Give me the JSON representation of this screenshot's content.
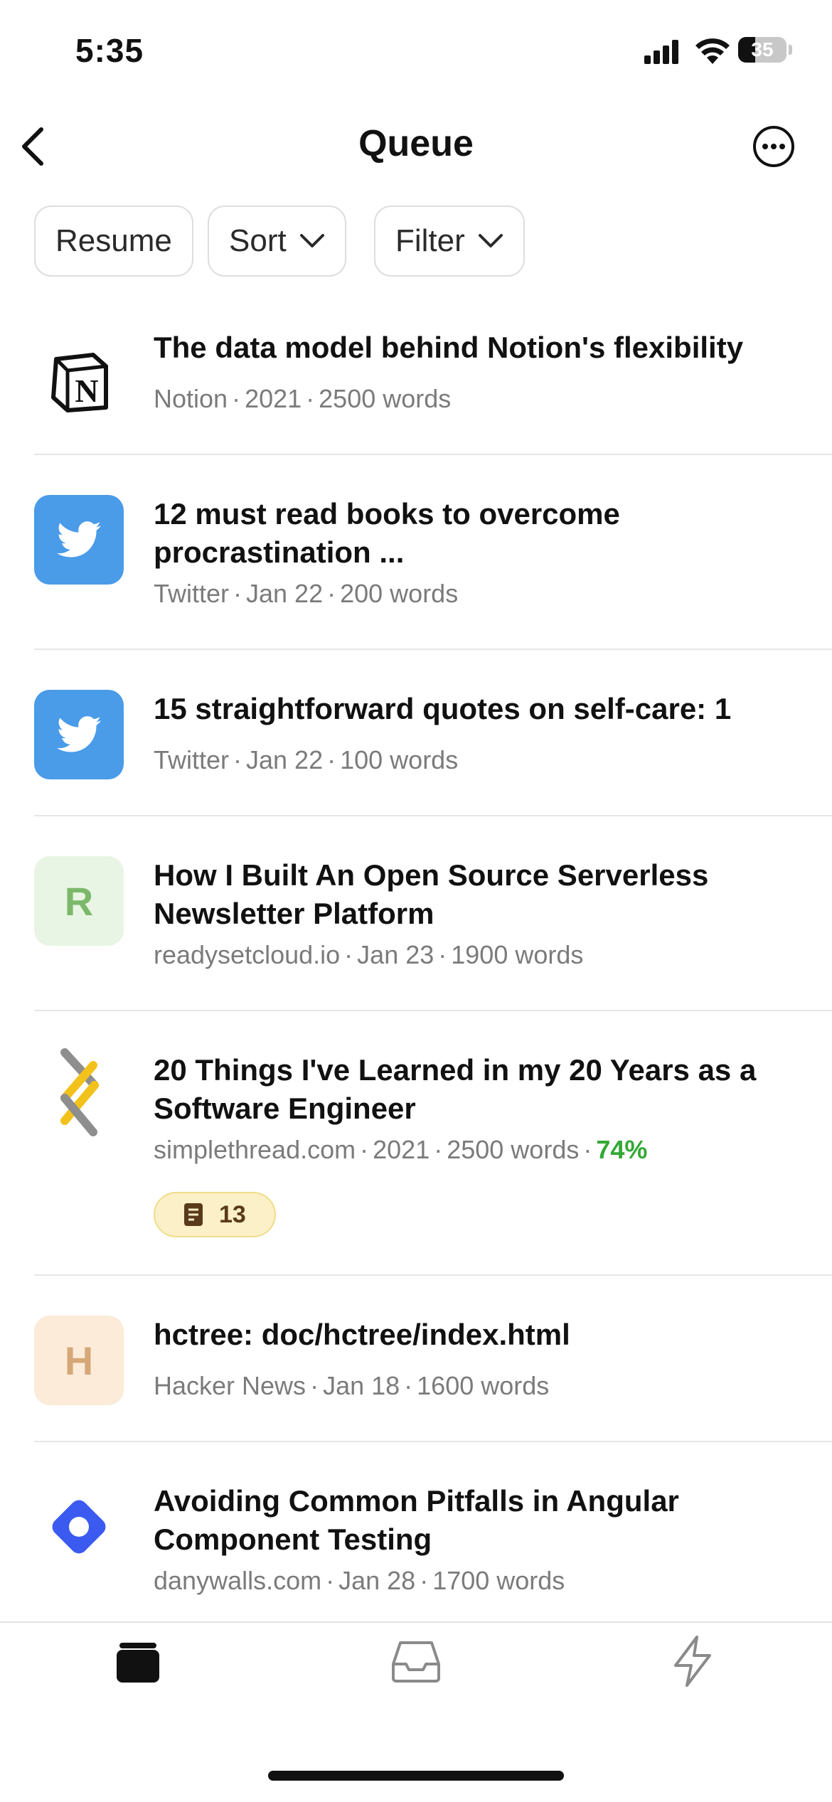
{
  "status": {
    "time": "5:35",
    "battery": "35"
  },
  "header": {
    "title": "Queue"
  },
  "chips": [
    {
      "label": "Resume"
    },
    {
      "label": "Sort"
    },
    {
      "label": "Filter"
    }
  ],
  "items": [
    {
      "title": "The data model behind Notion's flexibility",
      "source": "Notion",
      "date": "2021",
      "words": "2500 words",
      "icon": "notion-logo"
    },
    {
      "title": "12 must read books to overcome procrastination ...",
      "source": "Twitter",
      "date": "Jan 22",
      "words": "200 words",
      "icon": "twitter-logo"
    },
    {
      "title": "15 straightforward quotes on self-care:  1",
      "source": "Twitter",
      "date": "Jan 22",
      "words": "100 words",
      "icon": "twitter-logo"
    },
    {
      "title": "How I Built An Open Source Serverless Newsletter Platform",
      "source": "readysetcloud.io",
      "date": "Jan 23",
      "words": "1900 words",
      "icon": "letter-avatar",
      "letter": "R"
    },
    {
      "title": "20 Things I've Learned in my 20 Years as a Software Engineer",
      "source": "simplethread.com",
      "date": "2021",
      "words": "2500 words",
      "progress": "74%",
      "notes": "13",
      "icon": "simplethread-logo"
    },
    {
      "title": "hctree: doc/hctree/index.html",
      "source": "Hacker News",
      "date": "Jan 18",
      "words": "1600 words",
      "icon": "letter-avatar",
      "letter": "H"
    },
    {
      "title": "Avoiding Common Pitfalls in Angular Component Testing",
      "source": "danywalls.com",
      "date": "Jan 28",
      "words": "1700 words",
      "icon": "diamond-logo"
    }
  ],
  "tabs": [
    {
      "icon": "library-icon",
      "active": true
    },
    {
      "icon": "inbox-icon",
      "active": false
    },
    {
      "icon": "lightning-icon",
      "active": false
    }
  ],
  "colors": {
    "accent_green": "#34a835",
    "twitter_blue": "#4a9be8",
    "diamond_blue": "#3b5bf0"
  }
}
